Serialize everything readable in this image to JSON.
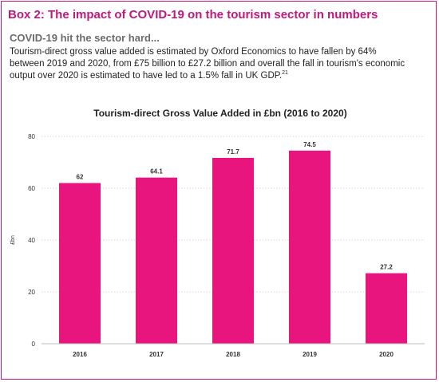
{
  "box": {
    "title": "Box 2: The impact of COVID-19 on the tourism sector in numbers",
    "subheading": "COVID-19 hit the sector hard...",
    "body_text": "Tourism-direct gross value added is estimated by Oxford Economics to have fallen by 64% between 2019 and 2020, from £75 billion to £27.2 billion and overall the fall in tourism's economic output over 2020 is estimated to have led to a 1.5% fall in UK GDP.",
    "footnote_ref": "21"
  },
  "colors": {
    "accent": "#c2187a",
    "bar": "#e8157f",
    "subheading": "#6b6b6b",
    "axis": "#bbbbbb",
    "grid": "#cccccc"
  },
  "chart_data": {
    "type": "bar",
    "title": "Tourism-direct Gross Value Added in £bn (2016 to 2020)",
    "xlabel": "",
    "ylabel": "£bn",
    "categories": [
      "2016",
      "2017",
      "2018",
      "2019",
      "2020"
    ],
    "values": [
      62,
      64.1,
      71.7,
      74.5,
      27.2
    ],
    "data_labels": [
      "62",
      "64.1",
      "71.7",
      "74.5",
      "27.2"
    ],
    "ylim": [
      0,
      80
    ],
    "yticks": [
      0,
      20,
      40,
      60,
      80
    ],
    "grid": "dotted horizontal",
    "legend": "none"
  }
}
